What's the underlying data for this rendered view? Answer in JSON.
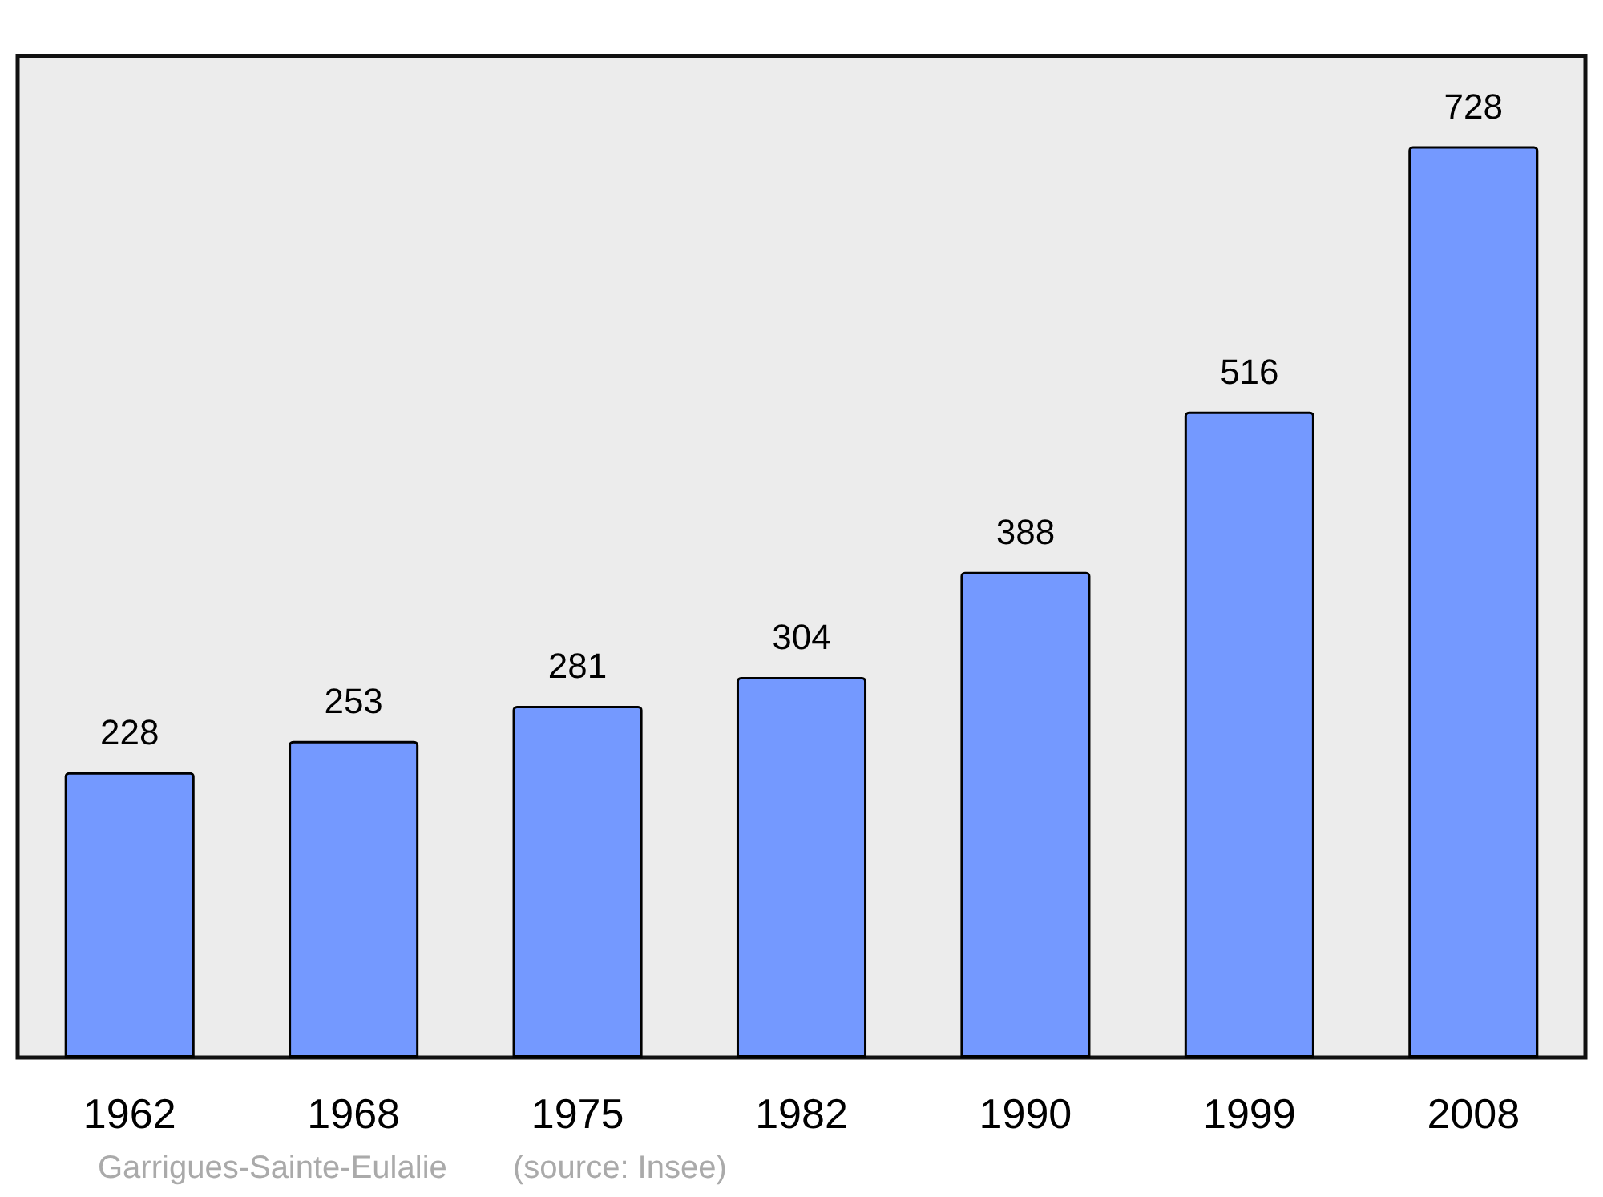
{
  "chart_data": {
    "type": "bar",
    "categories": [
      "1962",
      "1968",
      "1975",
      "1982",
      "1990",
      "1999",
      "2008"
    ],
    "values": [
      228,
      253,
      281,
      304,
      388,
      516,
      728
    ],
    "color": "#7499ff",
    "ylim": [
      0,
      800
    ],
    "data_labels": true,
    "annotations": [
      "Garrigues-Sainte-Eulalie",
      "(source: Insee)"
    ]
  }
}
